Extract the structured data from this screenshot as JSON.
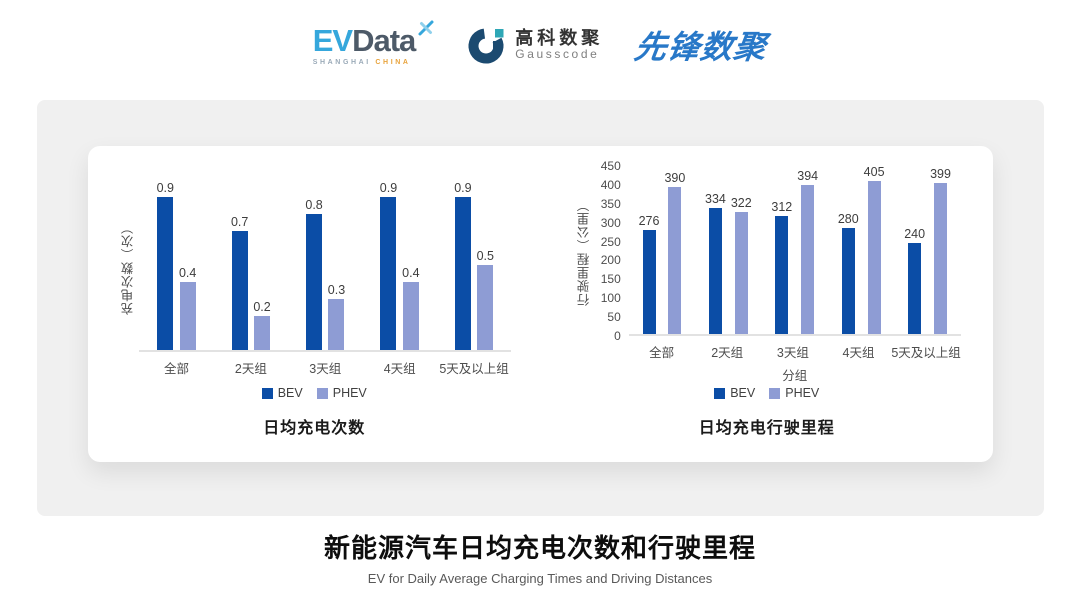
{
  "header": {
    "evdata_logo": {
      "ev": "EV",
      "data": "Data",
      "sub_shanghai": "SHANGHAI",
      "sub_china": "CHINA"
    },
    "gausscode_logo": {
      "name_cn": "高科数聚",
      "name_en": "Gausscode"
    },
    "pioneer_logo": {
      "text": "先锋数聚"
    }
  },
  "chart_data": [
    {
      "type": "bar",
      "title": "日均充电次数",
      "ylabel": "充电次数（次）",
      "xlabel": "",
      "categories": [
        "全部",
        "2天组",
        "3天组",
        "4天组",
        "5天及以上组"
      ],
      "series": [
        {
          "name": "BEV",
          "color": "#0B4DA6",
          "values": [
            0.9,
            0.7,
            0.8,
            0.9,
            0.9
          ]
        },
        {
          "name": "PHEV",
          "color": "#8E9CD4",
          "values": [
            0.4,
            0.2,
            0.3,
            0.4,
            0.5
          ]
        }
      ],
      "ylim": [
        0,
        1.0
      ],
      "yticks": [],
      "grid": false,
      "value_labels": true,
      "legend_position": "bottom"
    },
    {
      "type": "bar",
      "title": "日均充电行驶里程",
      "ylabel": "行驶里程（公里）",
      "xlabel": "分组",
      "categories": [
        "全部",
        "2天组",
        "3天组",
        "4天组",
        "5天及以上组"
      ],
      "series": [
        {
          "name": "BEV",
          "color": "#0B4DA6",
          "values": [
            276,
            334,
            312,
            280,
            240
          ]
        },
        {
          "name": "PHEV",
          "color": "#8E9CD4",
          "values": [
            390,
            322,
            394,
            405,
            399
          ]
        }
      ],
      "ylim": [
        0,
        450
      ],
      "yticks": [
        0,
        50,
        100,
        150,
        200,
        250,
        300,
        350,
        400,
        450
      ],
      "grid": false,
      "value_labels": true,
      "legend_position": "bottom"
    }
  ],
  "footer": {
    "title": "新能源汽车日均充电次数和行驶里程",
    "subtitle": "EV for Daily Average Charging Times and Driving Distances"
  },
  "colors": {
    "bev": "#0B4DA6",
    "phev": "#8E9CD4",
    "panel_bg": "#F0F0F0",
    "card_bg": "#FFFFFF",
    "axis_line": "#E2E2E2",
    "tick_text": "#4D4D4D"
  }
}
